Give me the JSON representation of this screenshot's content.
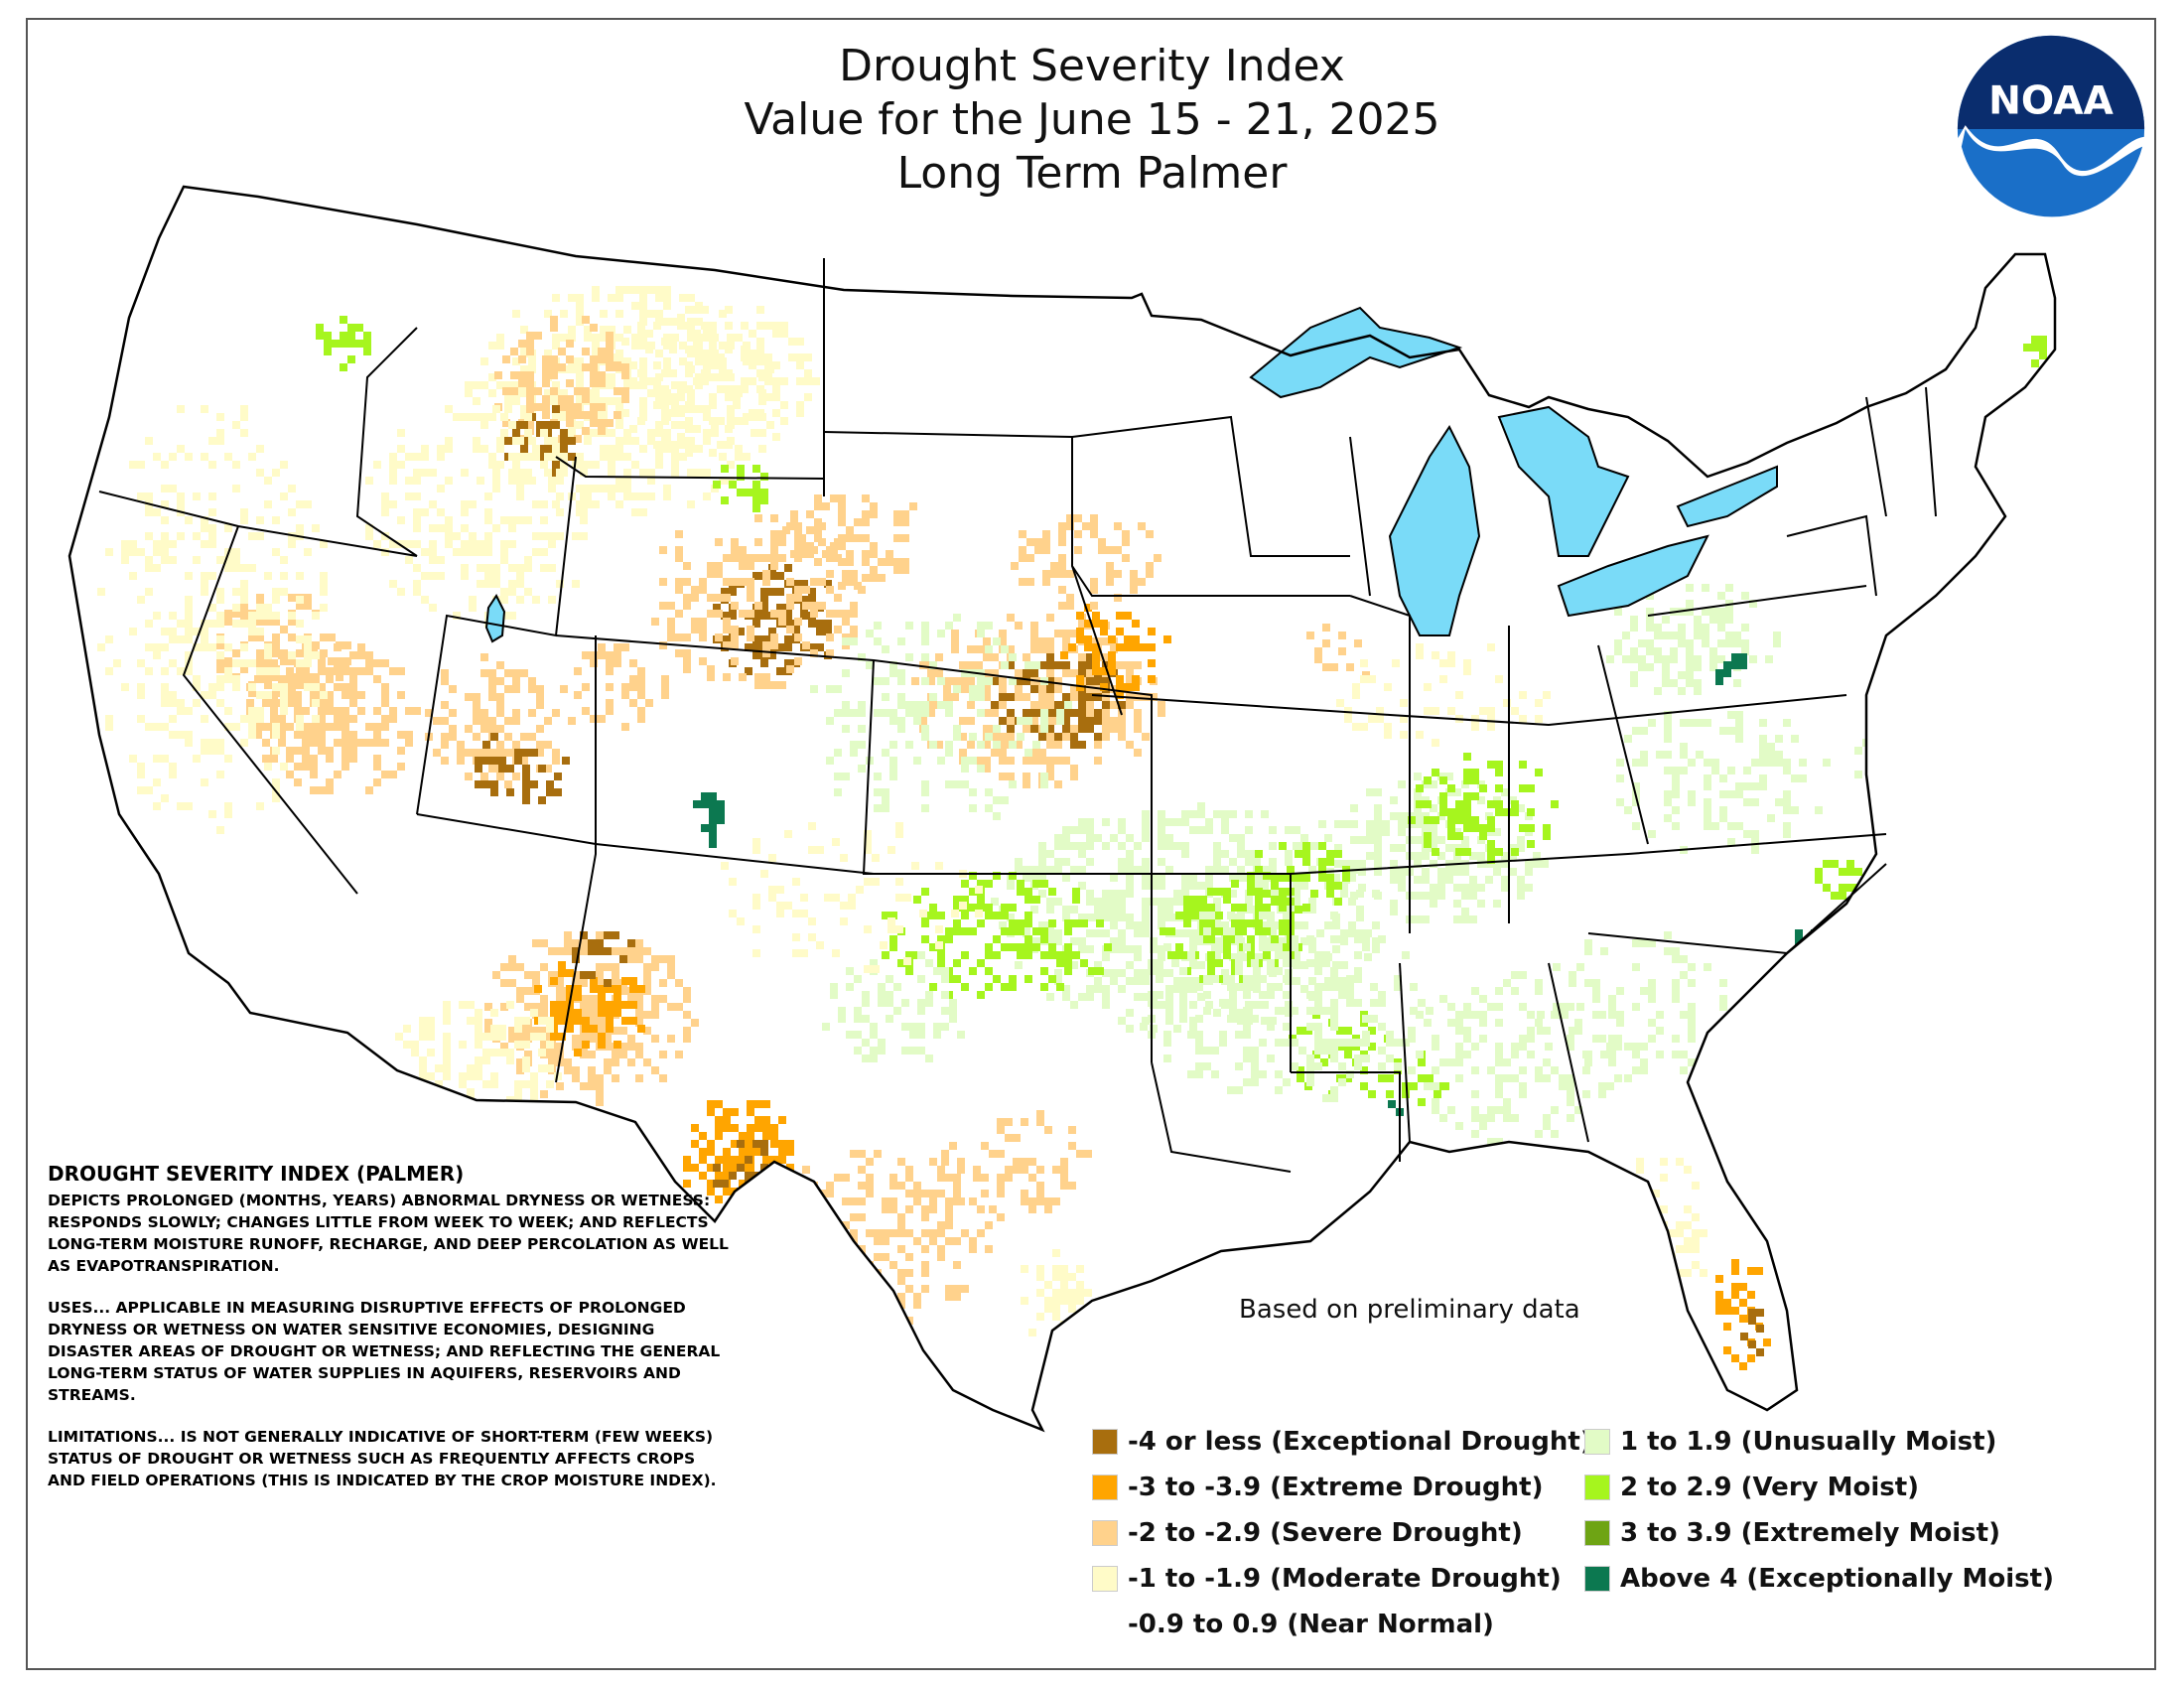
{
  "title": {
    "line1": "Drought Severity Index",
    "line2": "Value for the June 15 - 21, 2025",
    "line3": "Long Term Palmer"
  },
  "logo": {
    "text": "NOAA",
    "icon": "noaa-logo-icon",
    "colors": {
      "blue": "#1a6fc8",
      "navy": "#0a2d6e",
      "white": "#ffffff"
    }
  },
  "description": {
    "heading": "DROUGHT SEVERITY INDEX (PALMER)",
    "paragraphs": [
      "DEPICTS PROLONGED (MONTHS, YEARS) ABNORMAL DRYNESS OR WETNESS: RESPONDS SLOWLY; CHANGES LITTLE FROM WEEK TO WEEK; AND REFLECTS LONG-TERM MOISTURE RUNOFF, RECHARGE, AND DEEP PERCOLATION AS WELL AS EVAPOTRANSPIRATION.",
      "USES... APPLICABLE IN MEASURING DISRUPTIVE EFFECTS OF PROLONGED DRYNESS OR WETNESS ON WATER SENSITIVE ECONOMIES, DESIGNING DISASTER AREAS OF DROUGHT OR WETNESS; AND REFLECTING THE GENERAL LONG-TERM STATUS OF WATER SUPPLIES IN AQUIFERS, RESERVOIRS AND STREAMS.",
      "LIMITATIONS... IS NOT GENERALLY INDICATIVE OF SHORT-TERM (FEW WEEKS) STATUS OF DROUGHT OR WETNESS SUCH AS FREQUENTLY AFFECTS CROPS AND FIELD OPERATIONS (THIS IS INDICATED BY THE CROP MOISTURE INDEX)."
    ]
  },
  "note": "Based on preliminary data",
  "legend": [
    {
      "label": "-4 or less (Exceptional Drought)",
      "color": "#a86e0e"
    },
    {
      "label": "-3 to -3.9 (Extreme Drought)",
      "color": "#ffa500"
    },
    {
      "label": "-2 to -2.9 (Severe Drought)",
      "color": "#ffd28c"
    },
    {
      "label": "-1 to -1.9 (Moderate Drought)",
      "color": "#fffbc8"
    },
    {
      "label": "-0.9 to 0.9 (Near Normal)",
      "color": "#ffffff"
    },
    {
      "label": "1 to 1.9 (Unusually Moist)",
      "color": "#e2fbc6"
    },
    {
      "label": "2 to 2.9 (Very Moist)",
      "color": "#a6f51e"
    },
    {
      "label": "3 to 3.9 (Extremely Moist)",
      "color": "#6ea414"
    },
    {
      "label": "Above 4 (Exceptionally Moist)",
      "color": "#0c7850"
    }
  ],
  "map_colors": {
    "lakes": "#7adbf8",
    "border": "#000000",
    "background": "#ffffff"
  }
}
